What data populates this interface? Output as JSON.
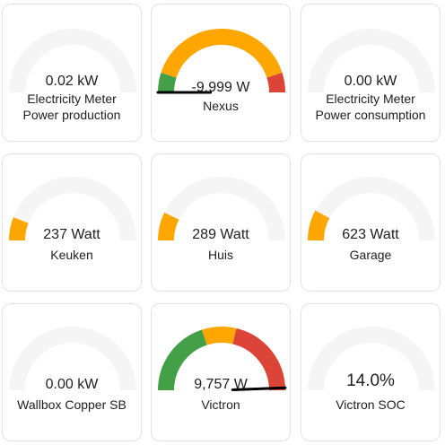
{
  "tiles": [
    {
      "value": "0.02 kW",
      "name_lines": [
        "Electricity Meter",
        "Power production"
      ],
      "gauge": {
        "min": -10,
        "max": 10,
        "value": 0.02,
        "fill": "#f5f5f5",
        "severity": null
      }
    },
    {
      "value": "-9,999 W",
      "name_lines": [
        "Nexus"
      ],
      "gauge": {
        "min": -10000,
        "max": 10000,
        "value": -9999,
        "segments": [
          {
            "from": -10000,
            "to": -8000,
            "color": "#43a047"
          },
          {
            "from": -8000,
            "to": 8000,
            "color": "#ffa600"
          },
          {
            "from": 8000,
            "to": 10000,
            "color": "#db4437"
          }
        ],
        "needle": true
      }
    },
    {
      "value": "0.00 kW",
      "name_lines": [
        "Electricity Meter",
        "Power consumption"
      ],
      "gauge": {
        "min": -10,
        "max": 10,
        "value": 0.0,
        "fill": "#f5f5f5",
        "severity": null
      }
    },
    {
      "value": "237 Watt",
      "name_lines": [
        "Keuken"
      ],
      "gauge": {
        "min": 0,
        "max": 2000,
        "value": 237,
        "severity": "#ffa600"
      }
    },
    {
      "value": "289 Watt",
      "name_lines": [
        "Huis"
      ],
      "gauge": {
        "min": 0,
        "max": 2000,
        "value": 289,
        "severity": "#ffa600"
      }
    },
    {
      "value": "623 Watt",
      "name_lines": [
        "Garage"
      ],
      "gauge": {
        "min": 0,
        "max": 4000,
        "value": 623,
        "severity": "#ffa600"
      }
    },
    {
      "value": "0.00 kW",
      "name_lines": [
        "Wallbox Copper SB"
      ],
      "gauge": {
        "min": 0,
        "max": 22,
        "value": 0.0,
        "severity": null
      }
    },
    {
      "value": "9,757 W",
      "name_lines": [
        "Victron"
      ],
      "gauge": {
        "min": -10000,
        "max": 10000,
        "value": 9757,
        "segments": [
          {
            "from": -10000,
            "to": -2000,
            "color": "#43a047"
          },
          {
            "from": -2000,
            "to": 1500,
            "color": "#ffa600"
          },
          {
            "from": 1500,
            "to": 10000,
            "color": "#db4437"
          }
        ],
        "needle": true
      }
    },
    {
      "value": "14.0%",
      "name_lines": [
        "Victron SOC"
      ],
      "gauge": {
        "min": 0,
        "max": 100,
        "value": 14.0,
        "severity": null
      }
    }
  ],
  "colors": {
    "track": "#f5f5f5",
    "text": "#212121",
    "border": "#e3e3e3",
    "needle": "#000000"
  }
}
